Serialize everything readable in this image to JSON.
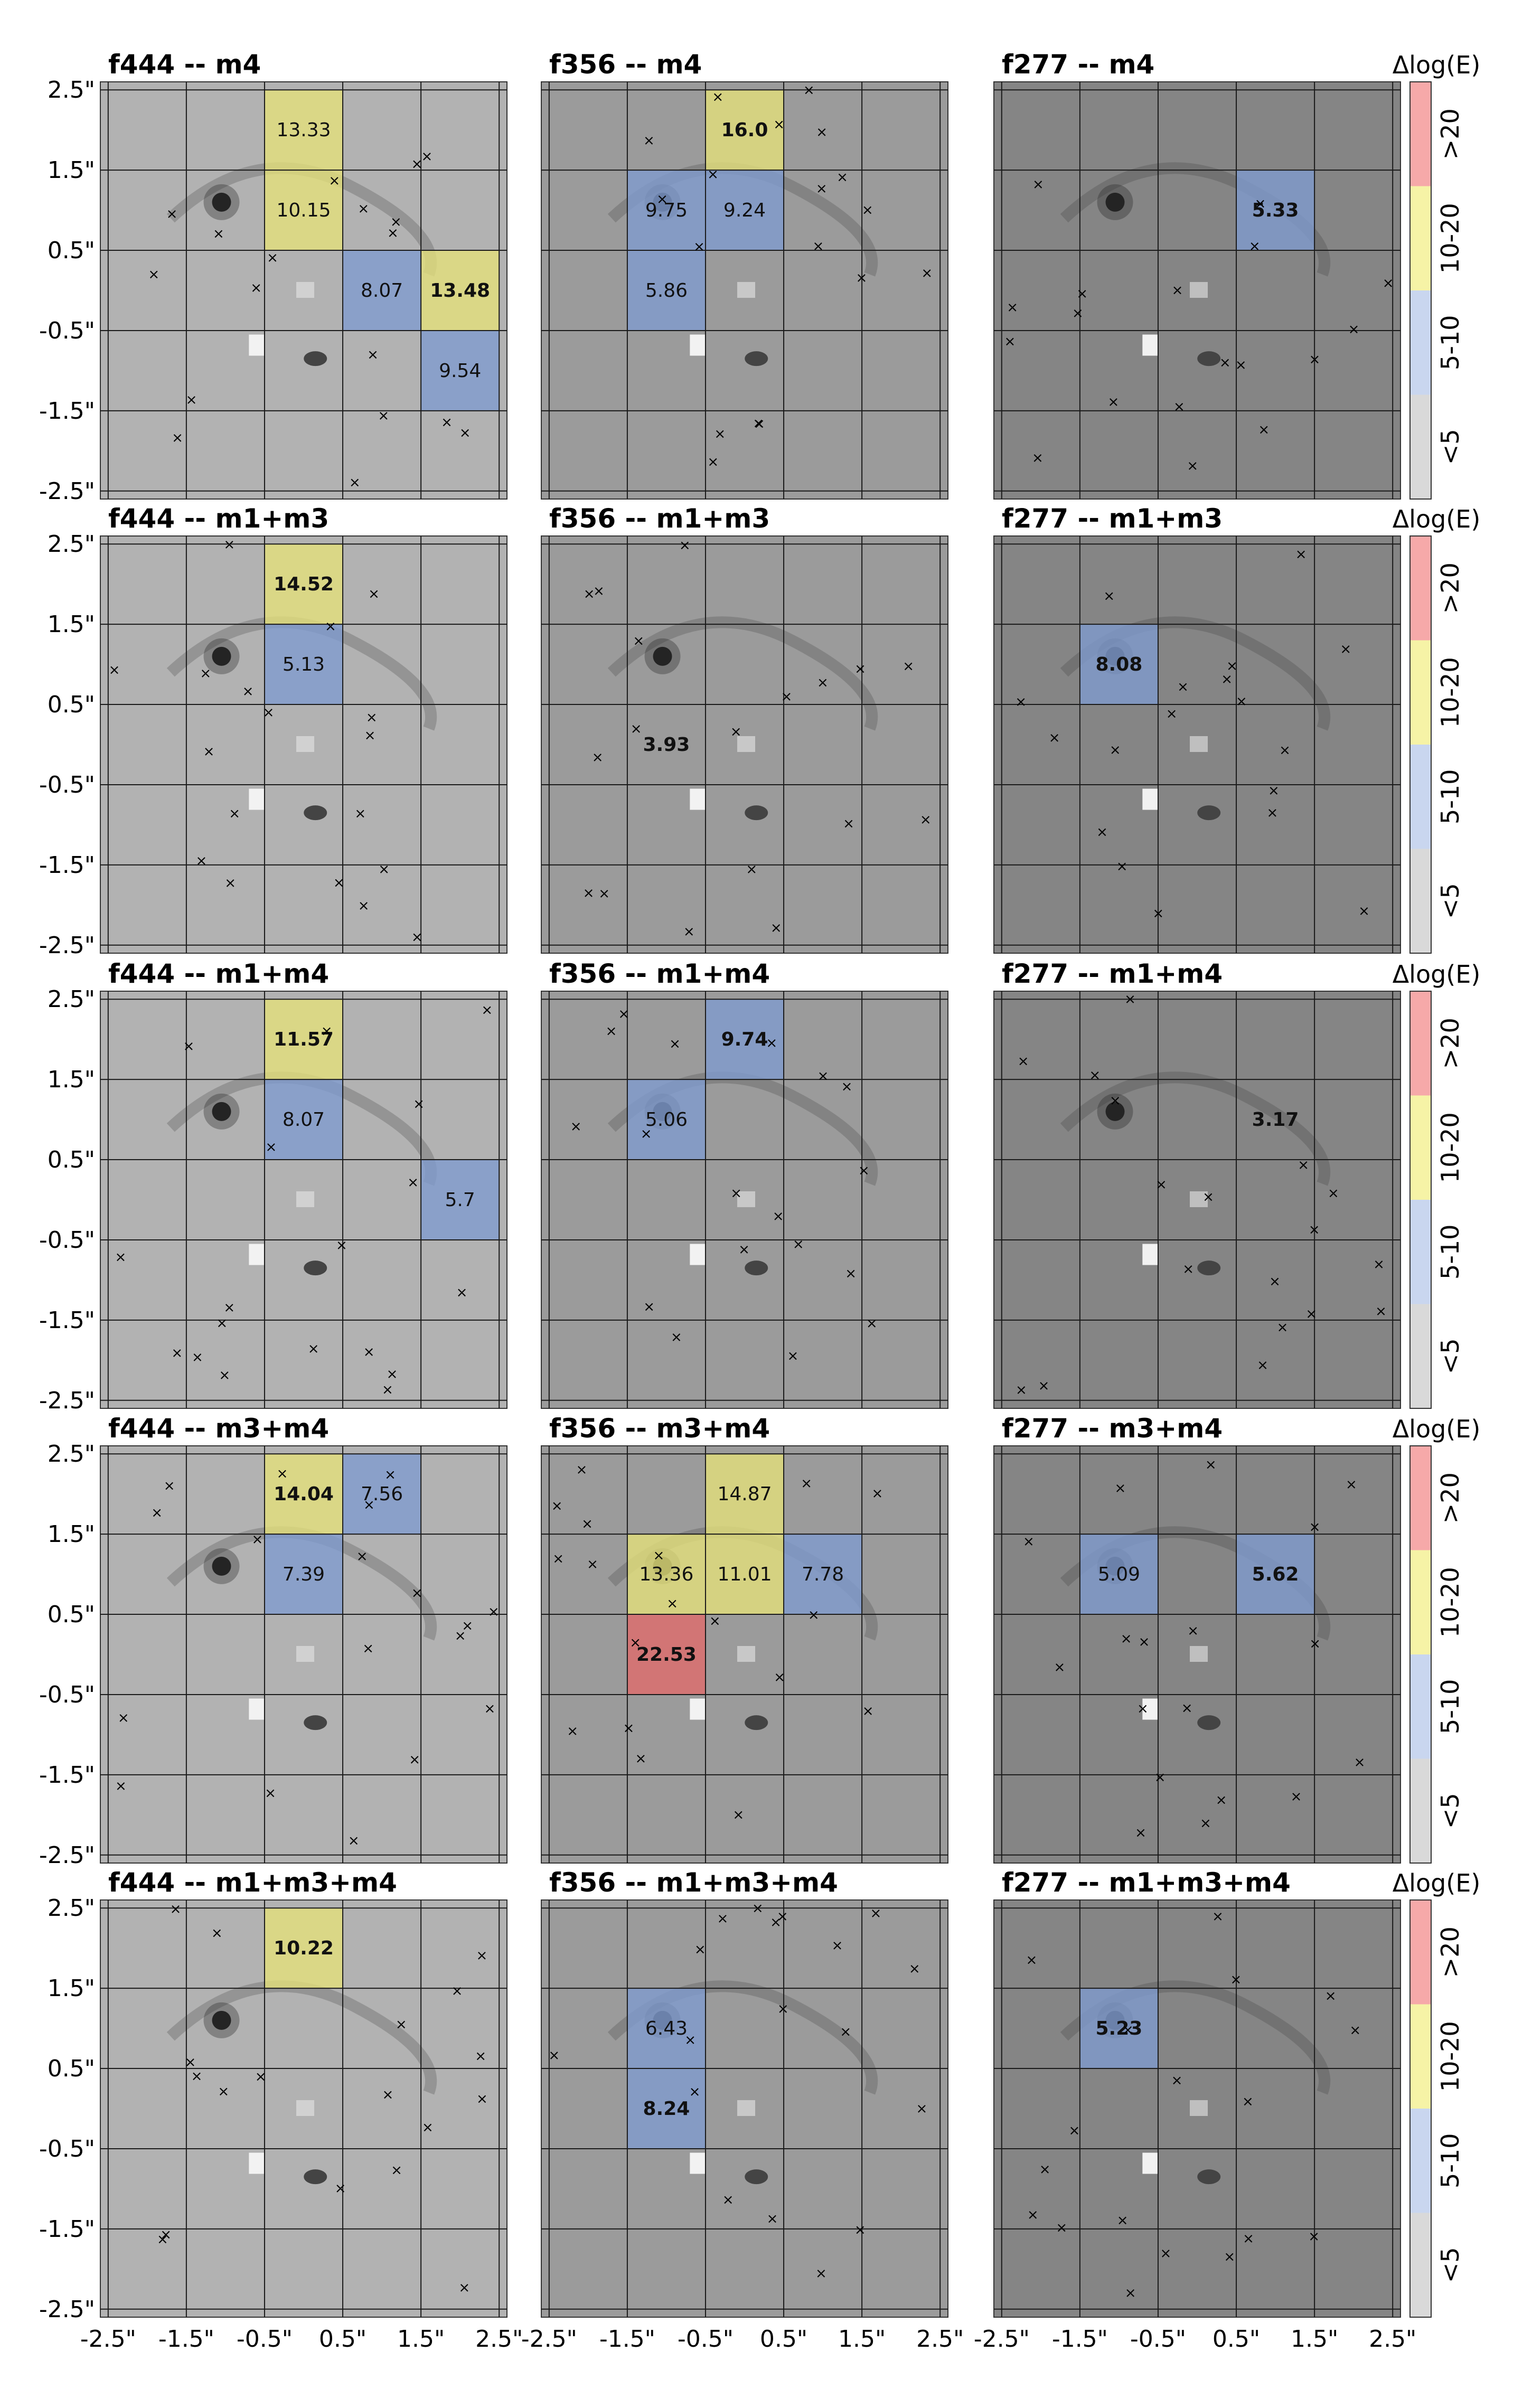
{
  "colorbar": {
    "title": "Δlog(E)",
    "bins": [
      {
        "label": "<5",
        "color": "#d9d9d9"
      },
      {
        "label": "5-10",
        "color": "#c9d6ef"
      },
      {
        "label": "10-20",
        "color": "#f6f3a6"
      },
      {
        "label": ">20",
        "color": "#f6a9a9"
      }
    ]
  },
  "axis_ticks": [
    "-2.5\"",
    "-1.5\"",
    "-0.5\"",
    "0.5\"",
    "1.5\"",
    "2.5\""
  ],
  "tick_values": [
    -2.5,
    -1.5,
    -0.5,
    0.5,
    1.5,
    2.5
  ],
  "chart_data": {
    "type": "heatmap",
    "xlim": [
      -2.6,
      2.6
    ],
    "ylim": [
      -2.6,
      2.6
    ],
    "grid": true,
    "cell_colors": {
      "blue": "#7f9bd0",
      "yellow": "#e6e27a",
      "red": "#e26a6a"
    },
    "panels": [
      {
        "filter": "f444",
        "title": "f444  --  m4",
        "cells": [
          {
            "x": 0,
            "y": 2,
            "value": "13.33",
            "color": "yellow",
            "bold": false
          },
          {
            "x": 0,
            "y": 1,
            "value": "10.15",
            "color": "yellow",
            "bold": false
          },
          {
            "x": 1,
            "y": 0,
            "value": "8.07",
            "color": "blue",
            "bold": false
          },
          {
            "x": 2,
            "y": 0,
            "value": "13.48",
            "color": "yellow",
            "bold": true
          },
          {
            "x": 2,
            "y": -1,
            "value": "9.54",
            "color": "blue",
            "bold": false
          }
        ]
      },
      {
        "filter": "f356",
        "title": "f356  --  m4",
        "cells": [
          {
            "x": 0,
            "y": 2,
            "value": "16.0",
            "color": "yellow",
            "bold": true
          },
          {
            "x": -1,
            "y": 1,
            "value": "9.75",
            "color": "blue",
            "bold": false
          },
          {
            "x": 0,
            "y": 1,
            "value": "9.24",
            "color": "blue",
            "bold": false
          },
          {
            "x": -1,
            "y": 0,
            "value": "5.86",
            "color": "blue",
            "bold": false
          }
        ]
      },
      {
        "filter": "f277",
        "title": "f277  --  m4",
        "cells": [
          {
            "x": 1,
            "y": 1,
            "value": "5.33",
            "color": "blue",
            "bold": true
          }
        ]
      },
      {
        "filter": "f444",
        "title": "f444  --  m1+m3",
        "cells": [
          {
            "x": 0,
            "y": 2,
            "value": "14.52",
            "color": "yellow",
            "bold": true
          },
          {
            "x": 0,
            "y": 1,
            "value": "5.13",
            "color": "blue",
            "bold": false
          }
        ]
      },
      {
        "filter": "f356",
        "title": "f356  --  m1+m3",
        "cells": [
          {
            "x": -1,
            "y": 0,
            "value": "3.93",
            "color": "none",
            "bold": true
          }
        ]
      },
      {
        "filter": "f277",
        "title": "f277  --  m1+m3",
        "cells": [
          {
            "x": -1,
            "y": 1,
            "value": "8.08",
            "color": "blue",
            "bold": true
          }
        ]
      },
      {
        "filter": "f444",
        "title": "f444  --  m1+m4",
        "cells": [
          {
            "x": 0,
            "y": 2,
            "value": "11.57",
            "color": "yellow",
            "bold": true
          },
          {
            "x": 0,
            "y": 1,
            "value": "8.07",
            "color": "blue",
            "bold": false
          },
          {
            "x": 2,
            "y": 0,
            "value": "5.7",
            "color": "blue",
            "bold": false
          }
        ]
      },
      {
        "filter": "f356",
        "title": "f356  --  m1+m4",
        "cells": [
          {
            "x": 0,
            "y": 2,
            "value": "9.74",
            "color": "blue",
            "bold": true
          },
          {
            "x": -1,
            "y": 1,
            "value": "5.06",
            "color": "blue",
            "bold": false
          }
        ]
      },
      {
        "filter": "f277",
        "title": "f277  --  m1+m4",
        "cells": [
          {
            "x": 1,
            "y": 1,
            "value": "3.17",
            "color": "none",
            "bold": true
          }
        ]
      },
      {
        "filter": "f444",
        "title": "f444  --  m3+m4",
        "cells": [
          {
            "x": 0,
            "y": 2,
            "value": "14.04",
            "color": "yellow",
            "bold": true
          },
          {
            "x": 1,
            "y": 2,
            "value": "7.56",
            "color": "blue",
            "bold": false
          },
          {
            "x": 0,
            "y": 1,
            "value": "7.39",
            "color": "blue",
            "bold": false
          }
        ]
      },
      {
        "filter": "f356",
        "title": "f356  --  m3+m4",
        "cells": [
          {
            "x": 0,
            "y": 2,
            "value": "14.87",
            "color": "yellow",
            "bold": false
          },
          {
            "x": -1,
            "y": 1,
            "value": "13.36",
            "color": "yellow",
            "bold": false
          },
          {
            "x": 0,
            "y": 1,
            "value": "11.01",
            "color": "yellow",
            "bold": false
          },
          {
            "x": 1,
            "y": 1,
            "value": "7.78",
            "color": "blue",
            "bold": false
          },
          {
            "x": -1,
            "y": 0,
            "value": "22.53",
            "color": "red",
            "bold": true
          }
        ]
      },
      {
        "filter": "f277",
        "title": "f277  --  m3+m4",
        "cells": [
          {
            "x": -1,
            "y": 1,
            "value": "5.09",
            "color": "blue",
            "bold": false
          },
          {
            "x": 1,
            "y": 1,
            "value": "5.62",
            "color": "blue",
            "bold": true
          }
        ]
      },
      {
        "filter": "f444",
        "title": "f444  --  m1+m3+m4",
        "cells": [
          {
            "x": 0,
            "y": 2,
            "value": "10.22",
            "color": "yellow",
            "bold": true
          }
        ]
      },
      {
        "filter": "f356",
        "title": "f356  --  m1+m3+m4",
        "cells": [
          {
            "x": -1,
            "y": 1,
            "value": "6.43",
            "color": "blue",
            "bold": false
          },
          {
            "x": -1,
            "y": 0,
            "value": "8.24",
            "color": "blue",
            "bold": true
          }
        ]
      },
      {
        "filter": "f277",
        "title": "f277  --  m1+m3+m4",
        "cells": [
          {
            "x": -1,
            "y": 1,
            "value": "5.23",
            "color": "blue",
            "bold": true
          }
        ]
      }
    ]
  }
}
